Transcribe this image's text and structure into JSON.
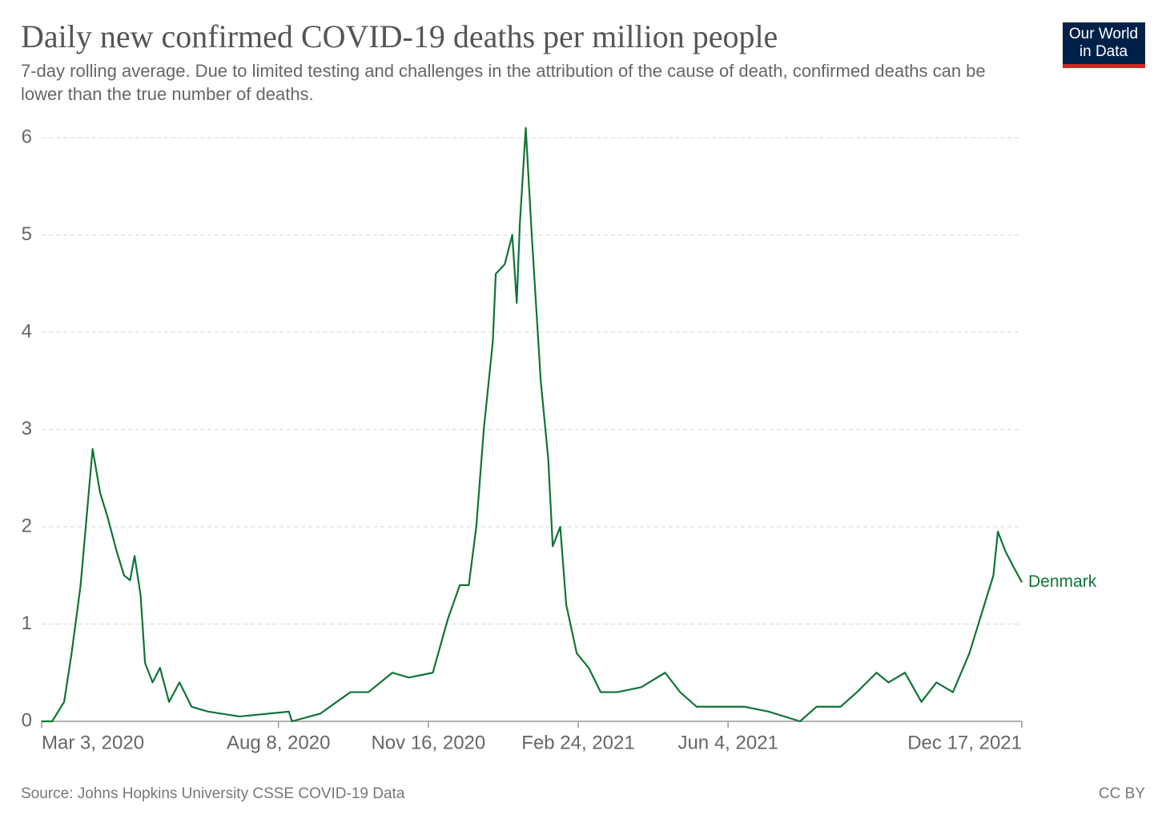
{
  "chart_data": {
    "type": "line",
    "title": "Daily new confirmed COVID-19 deaths per million people",
    "subtitle": "7-day rolling average. Due to limited testing and challenges in the attribution of the cause of death, confirmed deaths can be lower than the true number of deaths.",
    "source": "Source: Johns Hopkins University CSSE COVID-19 Data",
    "license": "CC BY",
    "logo": [
      "Our World",
      "in Data"
    ],
    "x": [
      "2020-03-03",
      "2020-03-10",
      "2020-03-18",
      "2020-03-23",
      "2020-03-29",
      "2020-04-02",
      "2020-04-06",
      "2020-04-11",
      "2020-04-16",
      "2020-04-22",
      "2020-04-27",
      "2020-05-01",
      "2020-05-04",
      "2020-05-08",
      "2020-05-11",
      "2020-05-16",
      "2020-05-21",
      "2020-05-27",
      "2020-06-03",
      "2020-06-11",
      "2020-06-22",
      "2020-07-13",
      "2020-08-15",
      "2020-08-17",
      "2020-09-05",
      "2020-09-25",
      "2020-10-07",
      "2020-10-23",
      "2020-11-03",
      "2020-11-19",
      "2020-11-29",
      "2020-12-07",
      "2020-12-13",
      "2020-12-18",
      "2020-12-23",
      "2020-12-29",
      "2020-12-31",
      "2021-01-06",
      "2021-01-11",
      "2021-01-14",
      "2021-01-16",
      "2021-01-20",
      "2021-01-24",
      "2021-01-30",
      "2021-02-04",
      "2021-02-07",
      "2021-02-12",
      "2021-02-16",
      "2021-02-23",
      "2021-03-03",
      "2021-03-11",
      "2021-03-22",
      "2021-04-07",
      "2021-04-23",
      "2021-05-03",
      "2021-05-14",
      "2021-05-30",
      "2021-06-15",
      "2021-07-01",
      "2021-07-22",
      "2021-08-02",
      "2021-08-18",
      "2021-08-29",
      "2021-09-11",
      "2021-09-19",
      "2021-09-30",
      "2021-10-11",
      "2021-10-21",
      "2021-11-01",
      "2021-11-12",
      "2021-11-20",
      "2021-11-28",
      "2021-12-01",
      "2021-12-06",
      "2021-12-11",
      "2021-12-17"
    ],
    "series": [
      {
        "name": "Denmark",
        "color": "#0f7436",
        "values": [
          0,
          0,
          0.2,
          0.7,
          1.4,
          2.1,
          2.8,
          2.35,
          2.1,
          1.75,
          1.5,
          1.45,
          1.7,
          1.3,
          0.6,
          0.4,
          0.55,
          0.2,
          0.4,
          0.15,
          0.1,
          0.05,
          0.1,
          0,
          0.08,
          0.3,
          0.3,
          0.5,
          0.45,
          0.5,
          1.05,
          1.4,
          1.4,
          2.0,
          3.0,
          3.9,
          4.6,
          4.7,
          5.0,
          4.3,
          5.1,
          6.1,
          5.0,
          3.5,
          2.7,
          1.8,
          2.0,
          1.2,
          0.7,
          0.55,
          0.3,
          0.3,
          0.35,
          0.5,
          0.3,
          0.15,
          0.15,
          0.15,
          0.1,
          0,
          0.15,
          0.15,
          0.3,
          0.5,
          0.4,
          0.5,
          0.2,
          0.4,
          0.3,
          0.7,
          1.1,
          1.5,
          1.95,
          1.75,
          1.6,
          1.43
        ]
      }
    ],
    "xlim": [
      "2020-03-03",
      "2021-12-17"
    ],
    "xticks": [
      {
        "value": "2020-03-03",
        "label": "Mar 3, 2020"
      },
      {
        "value": "2020-08-08",
        "label": "Aug 8, 2020"
      },
      {
        "value": "2020-11-16",
        "label": "Nov 16, 2020"
      },
      {
        "value": "2021-02-24",
        "label": "Feb 24, 2021"
      },
      {
        "value": "2021-06-04",
        "label": "Jun 4, 2021"
      },
      {
        "value": "2021-12-17",
        "label": "Dec 17, 2021"
      }
    ],
    "ylim": [
      0,
      6
    ],
    "yticks": [
      0,
      1,
      2,
      3,
      4,
      5,
      6
    ],
    "grid": true
  }
}
